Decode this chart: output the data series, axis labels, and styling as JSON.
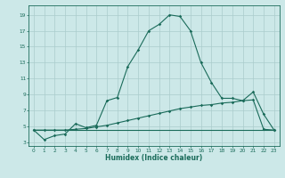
{
  "xlabel": "Humidex (Indice chaleur)",
  "background_color": "#cce8e8",
  "grid_color": "#aacccc",
  "line_color": "#1a6b5a",
  "x_ticks": [
    0,
    1,
    2,
    3,
    4,
    5,
    6,
    7,
    8,
    9,
    10,
    11,
    12,
    13,
    14,
    15,
    16,
    17,
    18,
    19,
    20,
    21,
    22,
    23
  ],
  "y_ticks": [
    3,
    5,
    7,
    9,
    11,
    13,
    15,
    17,
    19
  ],
  "xlim": [
    -0.5,
    23.5
  ],
  "ylim": [
    2.5,
    20.2
  ],
  "curve1_y": [
    4.5,
    3.3,
    3.8,
    4.0,
    5.3,
    4.8,
    5.1,
    8.2,
    8.6,
    12.5,
    14.6,
    17.0,
    17.8,
    19.0,
    18.8,
    17.0,
    13.0,
    10.5,
    8.5,
    8.5,
    8.2,
    9.3,
    6.5,
    4.5
  ],
  "curve2_y": [
    4.5,
    4.5,
    4.5,
    4.5,
    4.6,
    4.7,
    4.9,
    5.1,
    5.4,
    5.7,
    6.0,
    6.3,
    6.6,
    6.9,
    7.2,
    7.4,
    7.6,
    7.7,
    7.9,
    8.0,
    8.2,
    8.3,
    4.6,
    4.5
  ],
  "curve3_y": [
    4.5,
    4.5,
    4.5,
    4.5,
    4.5,
    4.5,
    4.5,
    4.5,
    4.5,
    4.5,
    4.5,
    4.5,
    4.5,
    4.5,
    4.5,
    4.5,
    4.5,
    4.5,
    4.5,
    4.5,
    4.5,
    4.5,
    4.5,
    4.5
  ],
  "xlabel_fontsize": 5.5,
  "tick_fontsize": 4.2,
  "lw": 0.8,
  "ms": 1.8
}
